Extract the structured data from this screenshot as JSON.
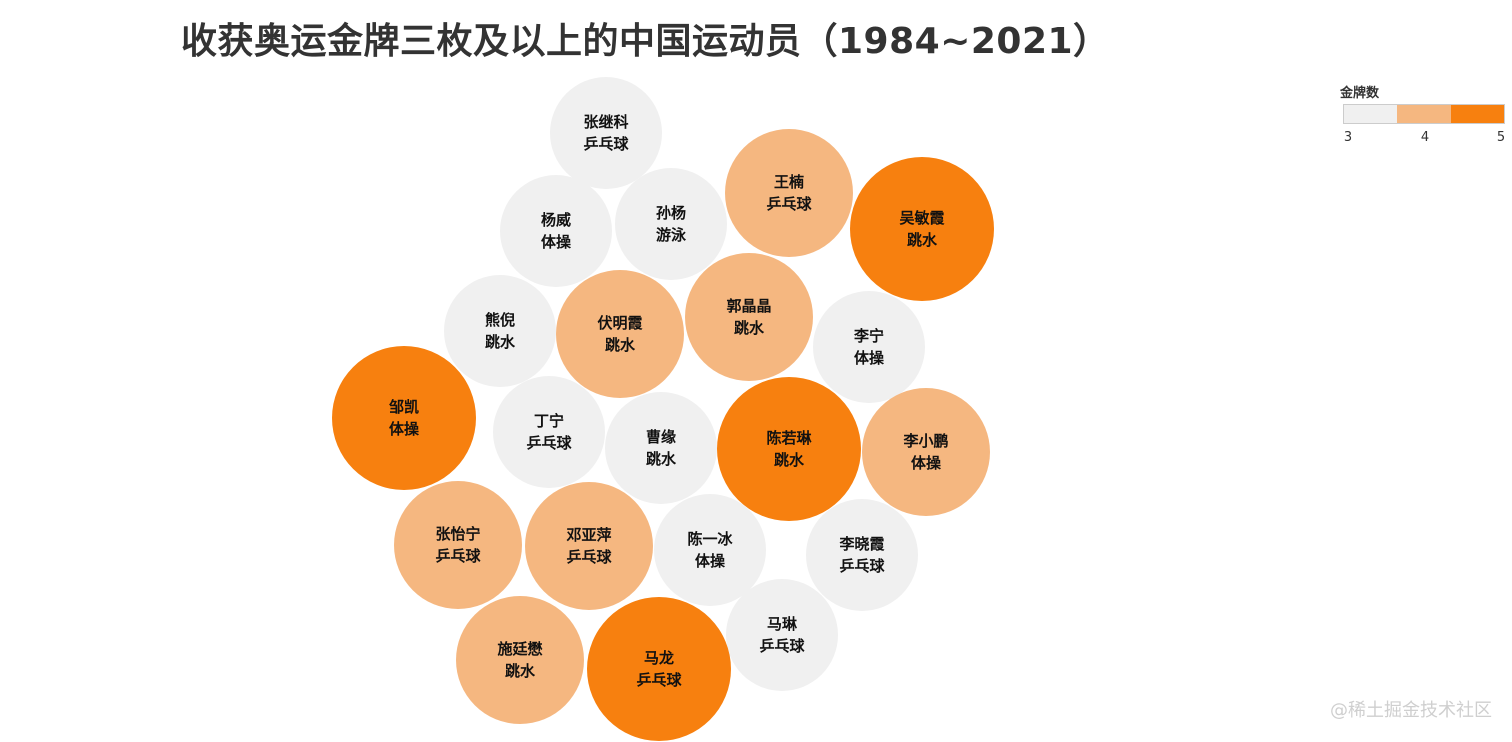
{
  "title": "收获奥运金牌三枚及以上的中国运动员（1984~2021）",
  "watermark": "@稀土掘金技术社区",
  "legend": {
    "title": "金牌数",
    "ticks": [
      "3",
      "4",
      "5"
    ]
  },
  "colors": {
    "3": "#f0f0f0",
    "4": "#f5b780",
    "5": "#f7800f"
  },
  "chart_data": {
    "type": "bubble",
    "title": "收获奥运金牌三枚及以上的中国运动员（1984~2021）",
    "value_label": "金牌数",
    "color_scale": {
      "min": 3,
      "max": 5
    },
    "points": [
      {
        "name": "张继科",
        "sport": "乒乓球",
        "gold": 3
      },
      {
        "name": "王楠",
        "sport": "乒乓球",
        "gold": 4
      },
      {
        "name": "吴敏霞",
        "sport": "跳水",
        "gold": 5
      },
      {
        "name": "杨威",
        "sport": "体操",
        "gold": 3
      },
      {
        "name": "孙杨",
        "sport": "游泳",
        "gold": 3
      },
      {
        "name": "熊倪",
        "sport": "跳水",
        "gold": 3
      },
      {
        "name": "伏明霞",
        "sport": "跳水",
        "gold": 4
      },
      {
        "name": "郭晶晶",
        "sport": "跳水",
        "gold": 4
      },
      {
        "name": "李宁",
        "sport": "体操",
        "gold": 3
      },
      {
        "name": "邹凯",
        "sport": "体操",
        "gold": 5
      },
      {
        "name": "丁宁",
        "sport": "乒乓球",
        "gold": 3
      },
      {
        "name": "曹缘",
        "sport": "跳水",
        "gold": 3
      },
      {
        "name": "陈若琳",
        "sport": "跳水",
        "gold": 5
      },
      {
        "name": "李小鹏",
        "sport": "体操",
        "gold": 4
      },
      {
        "name": "张怡宁",
        "sport": "乒乓球",
        "gold": 4
      },
      {
        "name": "邓亚萍",
        "sport": "乒乓球",
        "gold": 4
      },
      {
        "name": "陈一冰",
        "sport": "体操",
        "gold": 3
      },
      {
        "name": "李晓霞",
        "sport": "乒乓球",
        "gold": 3
      },
      {
        "name": "马琳",
        "sport": "乒乓球",
        "gold": 3
      },
      {
        "name": "施廷懋",
        "sport": "跳水",
        "gold": 4
      },
      {
        "name": "马龙",
        "sport": "乒乓球",
        "gold": 5
      }
    ]
  }
}
